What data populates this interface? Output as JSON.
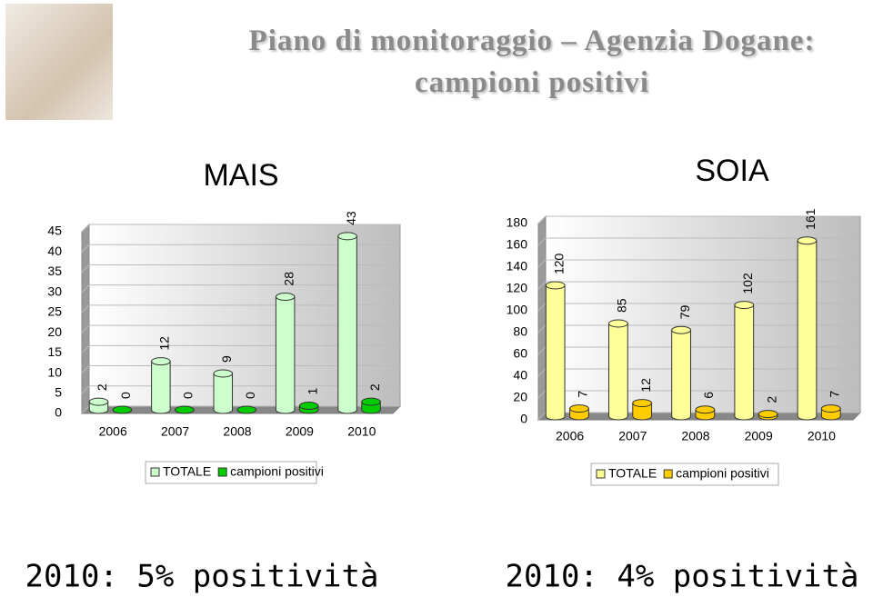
{
  "title": "Piano di monitoraggio – Agenzia Dogane: campioni positivi",
  "chart_data": [
    {
      "type": "bar",
      "title": "MAIS",
      "categories": [
        "2006",
        "2007",
        "2008",
        "2009",
        "2010"
      ],
      "series": [
        {
          "name": "TOTALE",
          "color": "#ccffcc",
          "values": [
            2,
            12,
            9,
            28,
            43
          ]
        },
        {
          "name": "campioni positivi",
          "color": "#00cc00",
          "values": [
            0,
            0,
            0,
            1,
            2
          ]
        }
      ],
      "ylim": [
        0,
        45
      ],
      "yticks": [
        0,
        5,
        10,
        15,
        20,
        25,
        30,
        35,
        40,
        45
      ],
      "grid": true,
      "annotation": "2010: 5% positività"
    },
    {
      "type": "bar",
      "title": "SOIA",
      "categories": [
        "2006",
        "2007",
        "2008",
        "2009",
        "2010"
      ],
      "series": [
        {
          "name": "TOTALE",
          "color": "#ffff99",
          "values": [
            120,
            85,
            79,
            102,
            161
          ]
        },
        {
          "name": "campioni positivi",
          "color": "#ffcc00",
          "values": [
            7,
            12,
            6,
            2,
            7
          ]
        }
      ],
      "ylim": [
        0,
        180
      ],
      "yticks": [
        0,
        20,
        40,
        60,
        80,
        100,
        120,
        140,
        160,
        180
      ],
      "grid": true,
      "annotation": "2010: 4% positività"
    }
  ]
}
